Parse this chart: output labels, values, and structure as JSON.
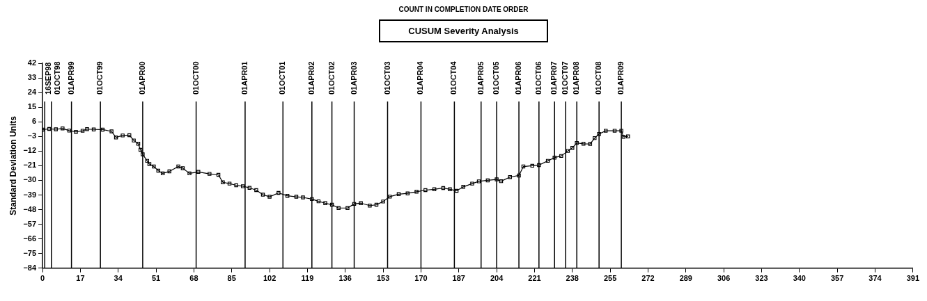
{
  "chart_data": {
    "type": "line",
    "title": "COUNT IN COMPLETION DATE ORDER",
    "subtitle": "CUSUM Severity Analysis",
    "ylabel": "Standard Deviation Units",
    "xlim": [
      0,
      391
    ],
    "xticks": [
      0,
      17,
      34,
      51,
      68,
      85,
      102,
      119,
      136,
      153,
      170,
      187,
      204,
      221,
      238,
      255,
      272,
      289,
      306,
      323,
      340,
      357,
      374,
      391
    ],
    "ylim": [
      -84,
      42
    ],
    "yticks": [
      -84,
      -75,
      -66,
      -57,
      -48,
      -39,
      -30,
      -21,
      -12,
      -3,
      6,
      15,
      24,
      33,
      42
    ],
    "grid": false,
    "marker": "square",
    "line_style": "solid",
    "legend": false,
    "series": [
      {
        "color": "#000000",
        "x": [
          0,
          3,
          6,
          9,
          12,
          15,
          18,
          20,
          23,
          27,
          31,
          33,
          36,
          39,
          41,
          43,
          44,
          45,
          47,
          48,
          50,
          52,
          54,
          57,
          61,
          63,
          66,
          70,
          75,
          79,
          81,
          84,
          87,
          90,
          93,
          96,
          99,
          102,
          106,
          110,
          114,
          117,
          121,
          124,
          127,
          130,
          133,
          137,
          140,
          143,
          147,
          150,
          153,
          156,
          160,
          164,
          168,
          172,
          176,
          180,
          183,
          186,
          189,
          193,
          196,
          200,
          204,
          206,
          210,
          214,
          216,
          220,
          223,
          227,
          230,
          233,
          236,
          238,
          240,
          243,
          246,
          248,
          250,
          253,
          257,
          260,
          261,
          263
        ],
        "values": [
          1.2,
          1.6,
          1.4,
          1.9,
          0.6,
          -0.2,
          0.5,
          1.5,
          1.3,
          1.2,
          0.1,
          -3.6,
          -2.4,
          -2.2,
          -5.5,
          -7.5,
          -11.2,
          -14,
          -18,
          -20,
          -21.5,
          -24,
          -25.7,
          -24.5,
          -21.5,
          -22.5,
          -25.7,
          -24.8,
          -26,
          -26.6,
          -31.2,
          -32,
          -33,
          -33.6,
          -34.6,
          -36,
          -38.8,
          -40.1,
          -37.7,
          -39.5,
          -40.1,
          -40.5,
          -41.5,
          -42.9,
          -44,
          -45,
          -47,
          -47,
          -44.5,
          -44,
          -45.5,
          -45,
          -43,
          -40,
          -38.5,
          -38,
          -37,
          -36,
          -35.5,
          -34.7,
          -35.5,
          -36.4,
          -34,
          -32,
          -30.6,
          -30,
          -29.4,
          -30.5,
          -28,
          -27,
          -21.5,
          -21,
          -20.6,
          -18,
          -16,
          -15,
          -11.9,
          -10,
          -7,
          -7.5,
          -7.6,
          -4,
          -1.5,
          0.5,
          0.5,
          0.5,
          -3.2,
          -3
        ]
      }
    ],
    "ref_lines": [
      {
        "axis": "x",
        "value": 1,
        "label": "16SEP98"
      },
      {
        "axis": "x",
        "value": 4,
        "label": "01OCT98"
      },
      {
        "axis": "x",
        "value": 13,
        "label": "01APR99"
      },
      {
        "axis": "x",
        "value": 26,
        "label": "01OCT99"
      },
      {
        "axis": "x",
        "value": 45,
        "label": "01APR00"
      },
      {
        "axis": "x",
        "value": 69,
        "label": "01OCT00"
      },
      {
        "axis": "x",
        "value": 91,
        "label": "01APR01"
      },
      {
        "axis": "x",
        "value": 108,
        "label": "01OCT01"
      },
      {
        "axis": "x",
        "value": 121,
        "label": "01APR02"
      },
      {
        "axis": "x",
        "value": 130,
        "label": "01OCT02"
      },
      {
        "axis": "x",
        "value": 140,
        "label": "01APR03"
      },
      {
        "axis": "x",
        "value": 155,
        "label": "01OCT03"
      },
      {
        "axis": "x",
        "value": 170,
        "label": "01APR04"
      },
      {
        "axis": "x",
        "value": 185,
        "label": "01OCT04"
      },
      {
        "axis": "x",
        "value": 197,
        "label": "01APR05"
      },
      {
        "axis": "x",
        "value": 204,
        "label": "01OCT05"
      },
      {
        "axis": "x",
        "value": 214,
        "label": "01APR06"
      },
      {
        "axis": "x",
        "value": 223,
        "label": "01OCT06"
      },
      {
        "axis": "x",
        "value": 230,
        "label": "01APR07"
      },
      {
        "axis": "x",
        "value": 235,
        "label": "01OCT07"
      },
      {
        "axis": "x",
        "value": 240,
        "label": "01APR08"
      },
      {
        "axis": "x",
        "value": 250,
        "label": "01OCT08"
      },
      {
        "axis": "x",
        "value": 260,
        "label": "01APR09"
      }
    ]
  }
}
